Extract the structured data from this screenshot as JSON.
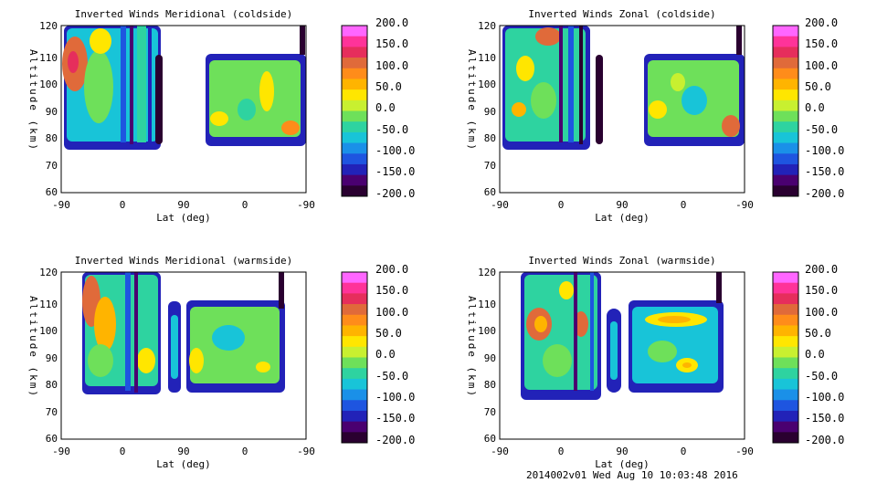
{
  "footer": "2014002v01 Wed Aug 10 10:03:48 2016",
  "colorbar": {
    "labels": [
      "200.0",
      "150.0",
      "100.0",
      "50.0",
      "0.0",
      "-50.0",
      "-100.0",
      "-150.0",
      "-200.0"
    ],
    "colors": [
      "#ff66ff",
      "#ff3399",
      "#e62e5c",
      "#e06a3a",
      "#ff8c1a",
      "#ffb400",
      "#ffe600",
      "#c8f030",
      "#6ee05a",
      "#2ed3a0",
      "#18c4d8",
      "#1a90e8",
      "#1e55e0",
      "#2222b8",
      "#4a0070",
      "#2a0030"
    ]
  },
  "chart_data": [
    {
      "type": "heatmap",
      "title": "Inverted Winds Meridional (coldside)",
      "xlabel": "Lat (deg)",
      "ylabel": "Altitude (km)",
      "xticks": [
        "-90",
        "0",
        "90",
        "0",
        "-90"
      ],
      "yticks": [
        "60",
        "70",
        "80",
        "90",
        "100",
        "110",
        "120"
      ],
      "ylim": [
        58,
        120
      ],
      "clim": [
        -200,
        200
      ],
      "contours": true
    },
    {
      "type": "heatmap",
      "title": "Inverted Winds Zonal (coldside)",
      "xlabel": "Lat (deg)",
      "ylabel": "Altitude (km)",
      "xticks": [
        "-90",
        "0",
        "90",
        "0",
        "-90"
      ],
      "yticks": [
        "60",
        "70",
        "80",
        "90",
        "100",
        "110",
        "120"
      ],
      "ylim": [
        58,
        120
      ],
      "clim": [
        -200,
        200
      ],
      "contours": true
    },
    {
      "type": "heatmap",
      "title": "Inverted Winds Meridional (warmside)",
      "xlabel": "Lat (deg)",
      "ylabel": "Altitude (km)",
      "xticks": [
        "-90",
        "0",
        "90",
        "0",
        "-90"
      ],
      "yticks": [
        "60",
        "70",
        "80",
        "90",
        "100",
        "110",
        "120"
      ],
      "ylim": [
        58,
        120
      ],
      "clim": [
        -200,
        200
      ],
      "contours": true
    },
    {
      "type": "heatmap",
      "title": "Inverted Winds Zonal (warmside)",
      "xlabel": "Lat (deg)",
      "ylabel": "Altitude (km)",
      "xticks": [
        "-90",
        "0",
        "90",
        "0",
        "-90"
      ],
      "yticks": [
        "60",
        "70",
        "80",
        "90",
        "100",
        "110",
        "120"
      ],
      "ylim": [
        58,
        120
      ],
      "clim": [
        -200,
        200
      ],
      "contours": true
    }
  ]
}
